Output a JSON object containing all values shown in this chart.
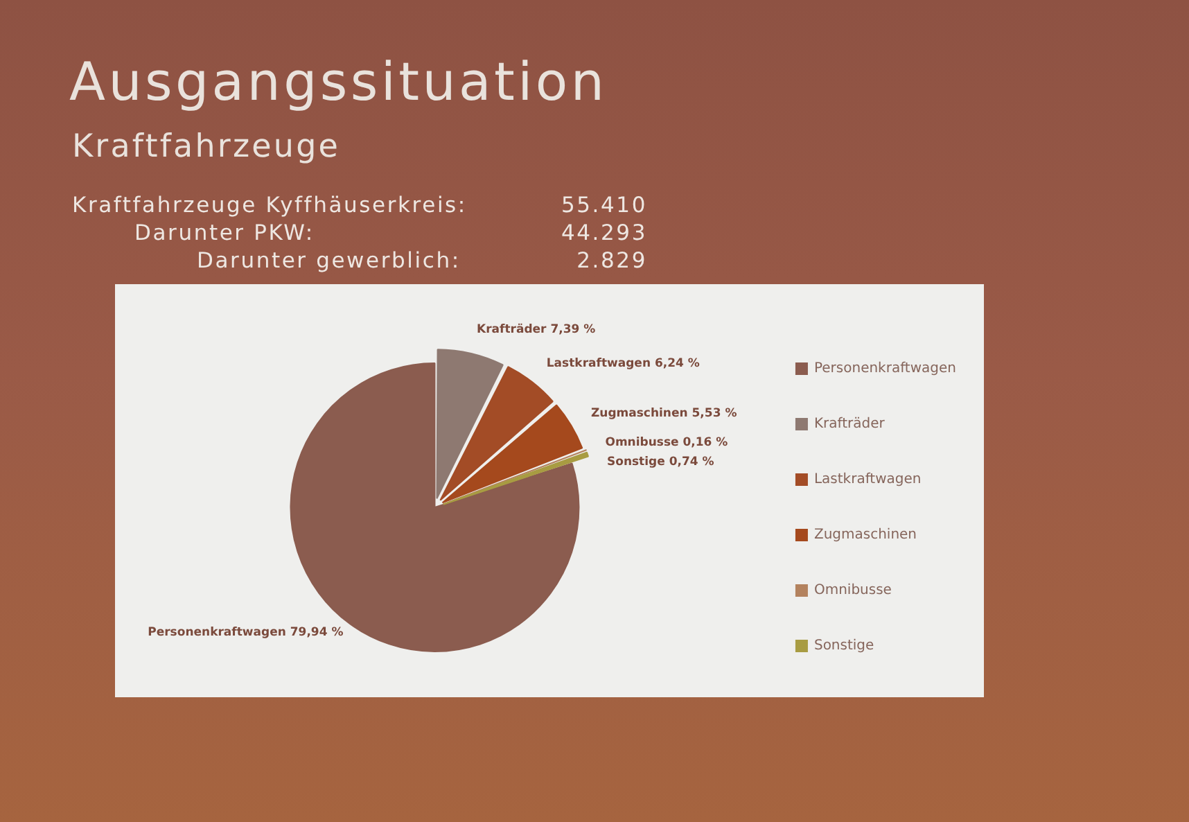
{
  "chart_data": {
    "type": "pie",
    "title": "Ausgangssituation",
    "subtitle": "Kraftfahrzeuge",
    "annotations": [
      "Kraftfahrzeuge Kyffhäuserkreis: 55.410",
      "Darunter PKW: 44.293",
      "Darunter gewerblich: 2.829"
    ],
    "categories": [
      "Personenkraftwagen",
      "Krafträder",
      "Lastkraftwagen",
      "Zugmaschinen",
      "Omnibusse",
      "Sonstige"
    ],
    "values": [
      79.94,
      7.39,
      6.24,
      5.53,
      0.16,
      0.74
    ],
    "colors": [
      "#8b5c4f",
      "#8e7971",
      "#a34c26",
      "#a5491d",
      "#b3825e",
      "#a89c42"
    ],
    "value_labels": [
      "79,94 %",
      "7,39 %",
      "6,24 %",
      "5,53 %",
      "0,16 %",
      "0,74 %"
    ],
    "legend": "right"
  }
}
